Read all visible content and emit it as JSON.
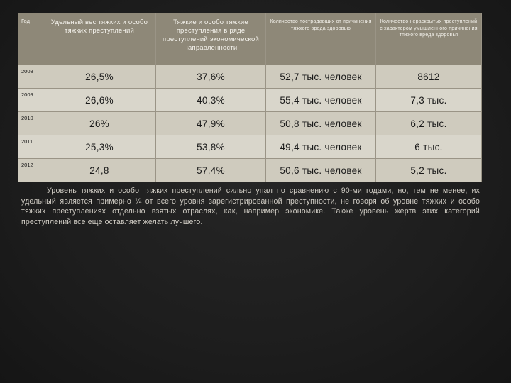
{
  "table": {
    "headers": {
      "year": "Год",
      "col1": "Удельный вес тяжких и особо тяжких преступлений",
      "col2": "Тяжкие и особо тяжкие преступления в ряде преступлений экономической направленности",
      "col3": "Количество пострадавших от причинения тяжкого вреда здоровью",
      "col4": "Количество нераскрытых преступлений с характером умышленного причинения тяжкого вреда здоровья"
    },
    "rows": [
      {
        "year": "2008",
        "c1": "26,5%",
        "c2": "37,6%",
        "c3": "52,7 тыс. человек",
        "c4": "8612"
      },
      {
        "year": "2009",
        "c1": "26,6%",
        "c2": "40,3%",
        "c3": "55,4 тыс. человек",
        "c4": "7,3 тыс."
      },
      {
        "year": "2010",
        "c1": "26%",
        "c2": "47,9%",
        "c3": "50,8 тыс. человек",
        "c4": "6,2 тыс."
      },
      {
        "year": "2011",
        "c1": "25,3%",
        "c2": "53,8%",
        "c3": "49,4 тыс. человек",
        "c4": "6 тыс."
      },
      {
        "year": "2012",
        "c1": "24,8",
        "c2": "57,4%",
        "c3": "50,6 тыс. человек",
        "c4": "5,2 тыс."
      }
    ]
  },
  "paragraph": "Уровень тяжких и особо тяжких преступлений сильно упал по сравнению с 90-ми годами, но, тем не менее, их удельный является примерно ¼ от всего уровня зарегистрированной преступности, не говоря об уровне тяжких и особо тяжких преступлениях отдельно взятых отраслях, как, например экономике. Также уровень жертв этих категорий преступлений все еще оставляет желать лучшего."
}
